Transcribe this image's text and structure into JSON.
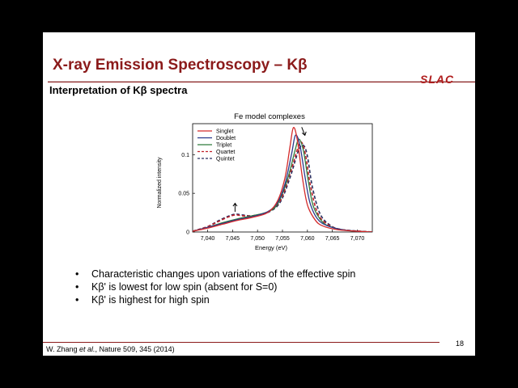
{
  "slide": {
    "title": "X-ray Emission Spectroscopy – Kβ",
    "logo": "SLAC",
    "subtitle": "Interpretation of Kβ spectra",
    "bullets": [
      "Characteristic changes upon variations of the effective spin",
      "Kβ' is lowest for low spin (absent for S=0)",
      "Kβ' is highest for high spin"
    ],
    "page_number": "18",
    "citation": {
      "author": "W. Zhang ",
      "et_al": "et al.",
      "rest": ", Nature 509, 345 (2014)"
    }
  },
  "colors": {
    "title": "#8b1a1a",
    "singlet": "#d42a2a",
    "doublet": "#2a3a8c",
    "triplet": "#2e7a3a",
    "quartet": "#c0202a",
    "quintet": "#2a3060"
  },
  "chart_data": {
    "type": "line",
    "title": "Fe model complexes",
    "xlabel": "Energy (eV)",
    "ylabel": "Normalized intensity",
    "xlim": [
      7037,
      7073
    ],
    "ylim": [
      0,
      0.14
    ],
    "x_ticks": [
      "7,040",
      "7,045",
      "7,050",
      "7,055",
      "7,060",
      "7,065",
      "7,070"
    ],
    "x_tick_values": [
      7040,
      7045,
      7050,
      7055,
      7060,
      7065,
      7070
    ],
    "y_ticks": [
      "0",
      "0.05",
      "0.1"
    ],
    "y_tick_values": [
      0,
      0.05,
      0.1
    ],
    "legend_position": "top-left",
    "series": [
      {
        "name": "Singlet",
        "style": "solid",
        "color": "#d42a2a",
        "x": [
          7037,
          7040,
          7043,
          7046,
          7049,
          7052,
          7054,
          7055.5,
          7056.5,
          7057.2,
          7058,
          7059,
          7060,
          7061.5,
          7063,
          7066,
          7070,
          7073
        ],
        "y": [
          0.001,
          0.005,
          0.01,
          0.015,
          0.019,
          0.025,
          0.04,
          0.07,
          0.11,
          0.135,
          0.118,
          0.07,
          0.035,
          0.016,
          0.008,
          0.003,
          0.001,
          0.0
        ]
      },
      {
        "name": "Doublet",
        "style": "solid",
        "color": "#2a3a8c",
        "x": [
          7037,
          7040,
          7043,
          7046,
          7049,
          7052,
          7054,
          7055.5,
          7056.8,
          7057.6,
          7058.5,
          7059.5,
          7060.5,
          7062,
          7064,
          7067,
          7070,
          7073
        ],
        "y": [
          0.001,
          0.006,
          0.011,
          0.016,
          0.02,
          0.026,
          0.038,
          0.062,
          0.1,
          0.125,
          0.112,
          0.072,
          0.038,
          0.017,
          0.008,
          0.003,
          0.001,
          0.0
        ]
      },
      {
        "name": "Triplet",
        "style": "solid",
        "color": "#2e7a3a",
        "x": [
          7037,
          7040,
          7043,
          7046,
          7049,
          7052,
          7054,
          7056,
          7057.5,
          7058.3,
          7059.2,
          7060.2,
          7061.2,
          7063,
          7065,
          7068,
          7073
        ],
        "y": [
          0.001,
          0.006,
          0.012,
          0.017,
          0.021,
          0.026,
          0.036,
          0.068,
          0.105,
          0.12,
          0.105,
          0.065,
          0.033,
          0.013,
          0.006,
          0.002,
          0.0
        ]
      },
      {
        "name": "Quartet",
        "style": "dashed",
        "color": "#c0202a",
        "x": [
          7037,
          7040,
          7042,
          7044,
          7045.5,
          7047,
          7049,
          7052,
          7054.5,
          7056.5,
          7058,
          7058.8,
          7059.6,
          7060.6,
          7062,
          7064,
          7067,
          7073
        ],
        "y": [
          0.001,
          0.007,
          0.013,
          0.019,
          0.022,
          0.021,
          0.021,
          0.026,
          0.04,
          0.075,
          0.107,
          0.116,
          0.1,
          0.06,
          0.025,
          0.01,
          0.003,
          0.0
        ]
      },
      {
        "name": "Quintet",
        "style": "dashed",
        "color": "#2a3060",
        "x": [
          7037,
          7040,
          7042,
          7044,
          7045.5,
          7047,
          7049,
          7052,
          7054.5,
          7056.5,
          7058.2,
          7059.2,
          7060,
          7061,
          7062.5,
          7064.5,
          7067,
          7073
        ],
        "y": [
          0.001,
          0.007,
          0.014,
          0.02,
          0.023,
          0.022,
          0.021,
          0.025,
          0.038,
          0.07,
          0.105,
          0.112,
          0.098,
          0.058,
          0.024,
          0.009,
          0.003,
          0.0
        ]
      }
    ],
    "annotations": [
      {
        "type": "arrow",
        "direction": "down",
        "x": 7059.5,
        "y": 0.125
      },
      {
        "type": "arrow",
        "direction": "up",
        "x": 7045.5,
        "y": 0.024
      }
    ]
  }
}
